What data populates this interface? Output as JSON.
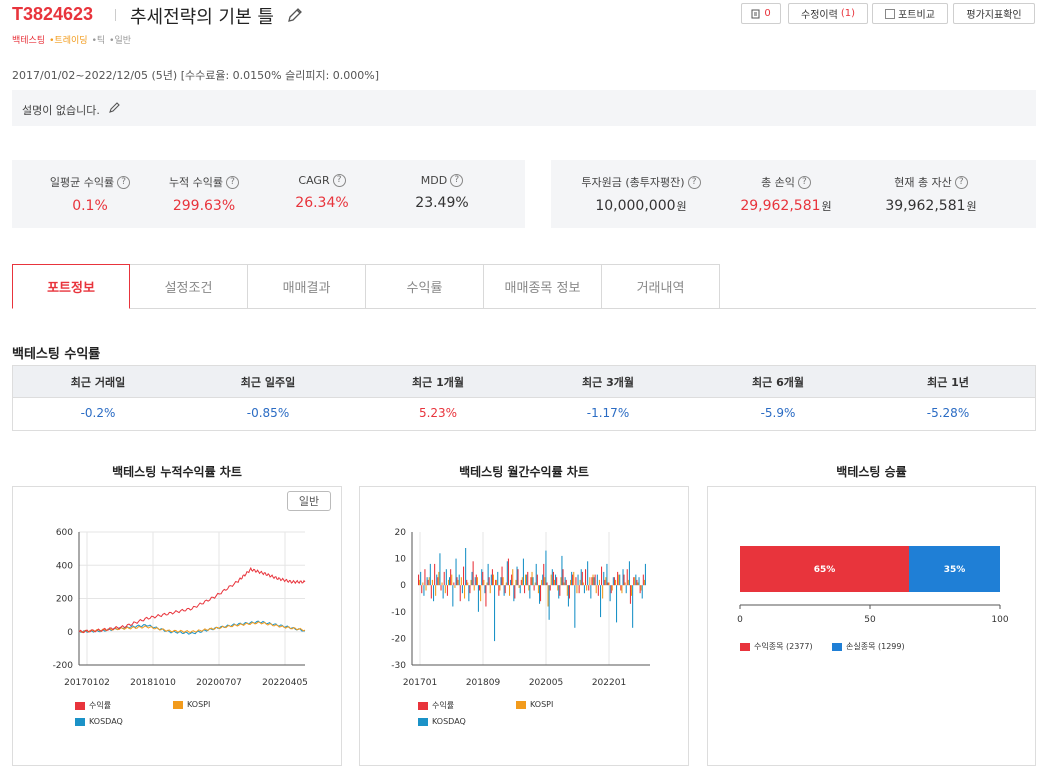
{
  "header": {
    "code": "T3824623",
    "title": "추세전략의 기본 틀",
    "tags": [
      "백테스팅",
      "•트레이딩",
      "•틱",
      "•일반"
    ],
    "buttons": {
      "docs_count": "0",
      "revision_label": "수정이력",
      "revision_count": "(1)",
      "compare_label": "포트비교",
      "eval_label": "평가지표확인"
    }
  },
  "period": "2017/01/02~2022/12/05 (5년) [수수료율: 0.0150% 슬리피지: 0.000%]",
  "description": "설명이 없습니다.",
  "stats_left": [
    {
      "label": "일평균 수익률",
      "value": "0.1%",
      "color": "red"
    },
    {
      "label": "누적 수익률",
      "value": "299.63%",
      "color": "red"
    },
    {
      "label": "CAGR",
      "value": "26.34%",
      "color": "red"
    },
    {
      "label": "MDD",
      "value": "23.49%",
      "color": "black"
    }
  ],
  "stats_right": [
    {
      "label": "투자원금 (총투자평잔)",
      "value": "10,000,000",
      "unit": "원",
      "color": "black"
    },
    {
      "label": "총 손익",
      "value": "29,962,581",
      "unit": "원",
      "color": "red"
    },
    {
      "label": "현재 총 자산",
      "value": "39,962,581",
      "unit": "원",
      "color": "black"
    }
  ],
  "tabs": [
    "포트정보",
    "설정조건",
    "매매결과",
    "수익률",
    "매매종목 정보",
    "거래내역"
  ],
  "returns": {
    "title": "백테스팅 수익률",
    "headers": [
      "최근 거래일",
      "최근 일주일",
      "최근 1개월",
      "최근 3개월",
      "최근 6개월",
      "최근 1년"
    ],
    "values": [
      "-0.2%",
      "-0.85%",
      "5.23%",
      "-1.17%",
      "-5.9%",
      "-5.28%"
    ],
    "value_colors": [
      "blue",
      "blue",
      "red",
      "blue",
      "blue",
      "blue"
    ]
  },
  "charts_titles": {
    "cum": "백테스팅 누적수익률 차트",
    "cum_button": "일반",
    "monthly": "백테스팅 월간수익률 차트",
    "winrate": "백테스팅 승률"
  },
  "colors": {
    "returns": "#e8343c",
    "kospi": "#f29b1c",
    "kosdaq": "#1b92c7",
    "loss": "#1f7fd6"
  },
  "chart_data": [
    {
      "type": "line",
      "title": "백테스팅 누적수익률 차트",
      "ylim": [
        -200,
        600
      ],
      "yticks": [
        "600",
        "400",
        "200",
        "0",
        "-200"
      ],
      "xticks": [
        "20170102",
        "20181010",
        "20200707",
        "20220405"
      ],
      "series": [
        {
          "name": "수익률",
          "x": [
            0,
            0.1,
            0.2,
            0.3,
            0.4,
            0.5,
            0.6,
            0.7,
            0.76,
            0.82,
            0.88,
            0.94,
            1.0
          ],
          "y": [
            0,
            10,
            30,
            80,
            110,
            140,
            210,
            300,
            375,
            350,
            320,
            300,
            299.63
          ]
        },
        {
          "name": "KOSPI",
          "x": [
            0,
            0.1,
            0.2,
            0.3,
            0.4,
            0.5,
            0.6,
            0.7,
            0.8,
            0.9,
            1.0
          ],
          "y": [
            0,
            10,
            20,
            30,
            5,
            0,
            20,
            40,
            55,
            30,
            10
          ]
        },
        {
          "name": "KOSDAQ",
          "x": [
            0,
            0.1,
            0.2,
            0.3,
            0.4,
            0.5,
            0.6,
            0.7,
            0.8,
            0.9,
            1.0
          ],
          "y": [
            0,
            5,
            25,
            40,
            0,
            -10,
            20,
            45,
            60,
            35,
            5
          ]
        }
      ],
      "legend": [
        "수익률",
        "KOSPI",
        "KOSDAQ"
      ]
    },
    {
      "type": "bar",
      "title": "백테스팅 월간수익률 차트",
      "ylim": [
        -30,
        20
      ],
      "yticks": [
        "20",
        "10",
        "0",
        "-10",
        "-20",
        "-30"
      ],
      "xticks": [
        "201701",
        "201809",
        "202005",
        "202201"
      ],
      "series": [
        {
          "name": "수익률",
          "values": [
            4,
            -3,
            6,
            2,
            -5,
            8,
            3,
            -2,
            5,
            -4,
            6,
            1,
            3,
            -6,
            7,
            2,
            -3,
            9,
            4,
            -2,
            5,
            -8,
            3,
            6,
            2,
            -4,
            7,
            -3,
            10,
            4,
            -5,
            6,
            2,
            -3,
            5,
            3,
            -2,
            4,
            -6,
            8,
            1,
            -2,
            5,
            3,
            -4,
            6,
            2,
            -5,
            4,
            3,
            -3,
            5,
            6,
            -2,
            3,
            4,
            -4,
            7,
            2,
            1,
            -3,
            3,
            5,
            -2,
            4,
            6,
            -7,
            3,
            2,
            -3,
            4
          ]
        },
        {
          "name": "KOSPI",
          "values": [
            2,
            1,
            -2,
            3,
            2,
            -4,
            5,
            1,
            -3,
            2,
            4,
            -1,
            2,
            3,
            -5,
            1,
            2,
            -2,
            3,
            -6,
            2,
            1,
            -3,
            4,
            2,
            -2,
            3,
            1,
            -4,
            6,
            2,
            -1,
            3,
            4,
            -2,
            5,
            1,
            -3,
            2,
            3,
            -8,
            4,
            2,
            -2,
            3,
            1,
            -4,
            2,
            5,
            -3,
            2,
            1,
            -2,
            3,
            4,
            -3,
            2,
            -5,
            3,
            1,
            -2,
            2,
            4,
            -3,
            1,
            2,
            -4,
            3,
            1,
            -2,
            2
          ]
        },
        {
          "name": "KOSDAQ",
          "values": [
            5,
            -4,
            3,
            8,
            -6,
            4,
            12,
            -5,
            6,
            3,
            -8,
            10,
            4,
            -3,
            14,
            -6,
            5,
            3,
            -10,
            6,
            -3,
            8,
            4,
            -21,
            5,
            3,
            -4,
            9,
            2,
            -6,
            7,
            -3,
            10,
            4,
            -5,
            3,
            8,
            -7,
            4,
            13,
            -13,
            6,
            4,
            -5,
            11,
            3,
            -8,
            5,
            -16,
            4,
            6,
            -3,
            9,
            -5,
            3,
            4,
            -12,
            5,
            8,
            -6,
            3,
            -14,
            4,
            6,
            -3,
            9,
            -16,
            4,
            3,
            -5,
            8
          ]
        }
      ],
      "legend": [
        "수익률",
        "KOSPI",
        "KOSDAQ"
      ]
    },
    {
      "type": "bar",
      "title": "백테스팅 승률",
      "orientation": "horizontal-stacked",
      "xlim": [
        0,
        100
      ],
      "xticks": [
        "0",
        "50",
        "100"
      ],
      "series": [
        {
          "name": "수익종목",
          "value": 65,
          "label": "65%",
          "count": 2377
        },
        {
          "name": "손실종목",
          "value": 35,
          "label": "35%",
          "count": 1299
        }
      ],
      "legend": [
        "수익종목 (2377)",
        "손실종목 (1299)"
      ]
    }
  ]
}
